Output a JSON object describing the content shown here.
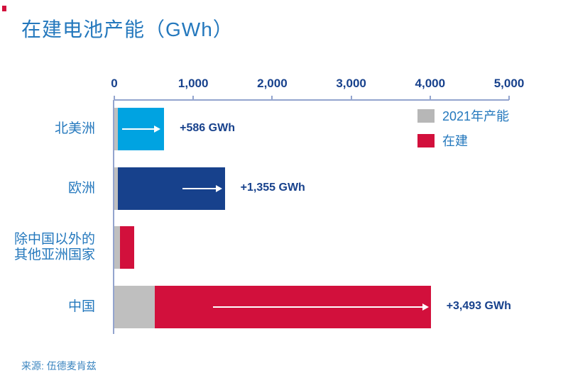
{
  "page": {
    "title": "在建电池产能（GWh）",
    "source": "来源: 伍德麦肯兹"
  },
  "legend": {
    "items": [
      {
        "label": "2021年产能",
        "color": "#B7B7B7"
      },
      {
        "label": "在建",
        "color": "#D2103C"
      }
    ]
  },
  "colors": {
    "title_blue": "#2478BD",
    "navy": "#17418C",
    "light_blue": "#00A3E1",
    "red": "#D2103C",
    "gray": "#BFBFBF",
    "axis": "#93A4CE"
  },
  "chart_data": {
    "type": "bar",
    "orientation": "horizontal",
    "title": "在建电池产能（GWh）",
    "xlabel": "GWh",
    "xlim": [
      0,
      5000
    ],
    "grid": false,
    "legend_position": "top-right",
    "x_ticks": [
      {
        "value": 0,
        "label": "0"
      },
      {
        "value": 1000,
        "label": "1,000"
      },
      {
        "value": 2000,
        "label": "2,000"
      },
      {
        "value": 3000,
        "label": "3,000"
      },
      {
        "value": 4000,
        "label": "4,000"
      },
      {
        "value": 5000,
        "label": "5,000"
      }
    ],
    "series_names": [
      "2021年产能",
      "在建"
    ],
    "base_color": "#BFBFBF",
    "rows": [
      {
        "category_lines": [
          "北美洲"
        ],
        "capacity_2021": 45,
        "under_construction": 586,
        "construction_color": "#00A3E1",
        "annotation": "+586 GWh",
        "arrow": true
      },
      {
        "category_lines": [
          "欧洲"
        ],
        "capacity_2021": 45,
        "under_construction": 1355,
        "construction_color": "#17418C",
        "annotation": "+1,355 GWh",
        "arrow": true
      },
      {
        "category_lines": [
          "除中国以外的",
          "其他亚洲国家"
        ],
        "capacity_2021": 70,
        "under_construction": 180,
        "construction_color": "#D2103C",
        "annotation": "",
        "arrow": false
      },
      {
        "category_lines": [
          "中国"
        ],
        "capacity_2021": 515,
        "under_construction": 3493,
        "construction_color": "#D2103C",
        "annotation": "+3,493 GWh",
        "arrow": true
      }
    ],
    "source": "来源: 伍德麦肯兹"
  }
}
